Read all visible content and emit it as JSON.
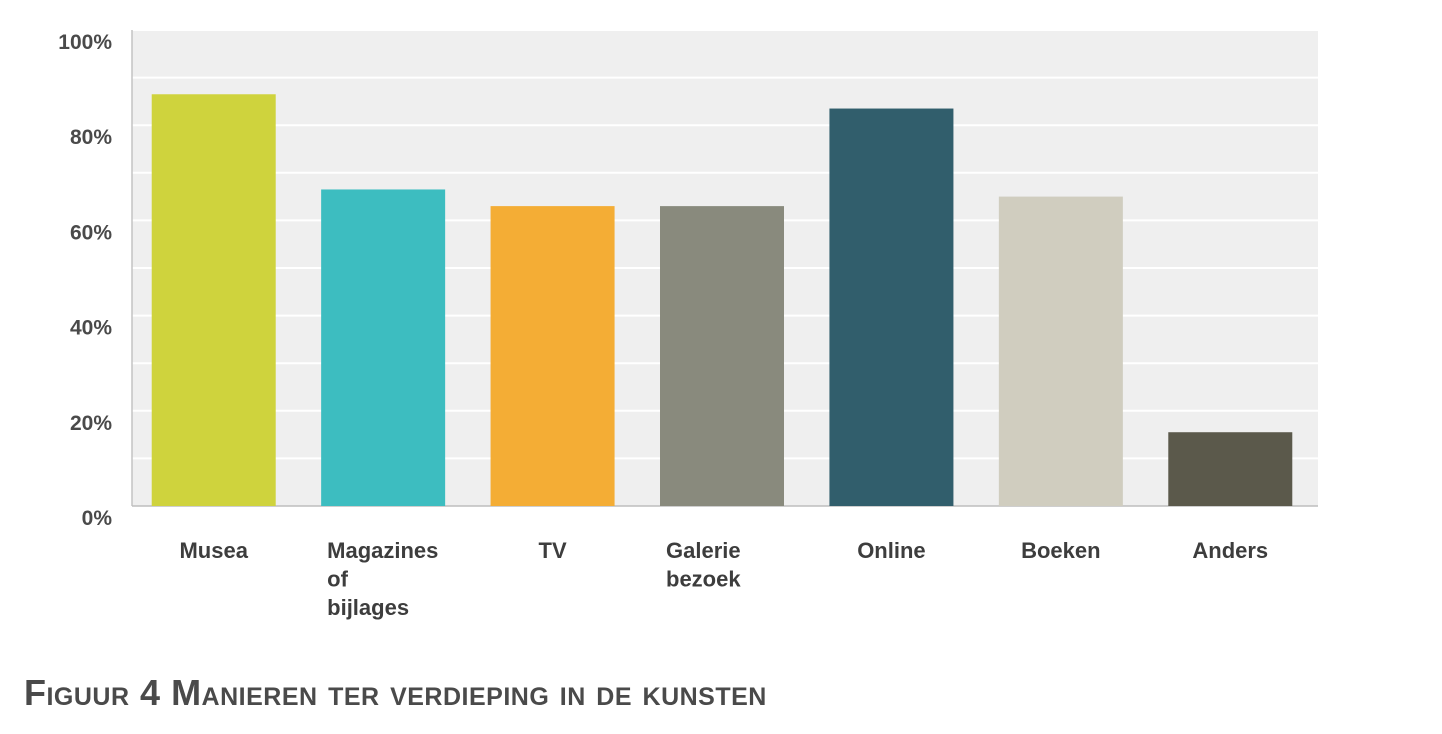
{
  "chart_data": {
    "type": "bar",
    "categories": [
      "Musea",
      "Magazines of bijlages",
      "TV",
      "Galerie bezoek",
      "Online",
      "Boeken",
      "Anders"
    ],
    "category_lines": [
      [
        "Musea"
      ],
      [
        "Magazines",
        "of",
        "bijlages"
      ],
      [
        "TV"
      ],
      [
        "Galerie",
        "bezoek"
      ],
      [
        "Online"
      ],
      [
        "Boeken"
      ],
      [
        "Anders"
      ]
    ],
    "values": [
      86.5,
      66.5,
      63,
      63,
      83.5,
      65,
      15.5
    ],
    "colors": [
      "#cfd33d",
      "#3dbdc0",
      "#f4ad35",
      "#898a7d",
      "#315e6c",
      "#d0cdbf",
      "#5b594b"
    ],
    "yticks": [
      "0%",
      "20%",
      "40%",
      "60%",
      "80%",
      "100%"
    ],
    "ylim": [
      0,
      100
    ],
    "grid": true,
    "legend": "none"
  },
  "caption": "Figuur 4 Manieren ter verdieping in de kunsten"
}
